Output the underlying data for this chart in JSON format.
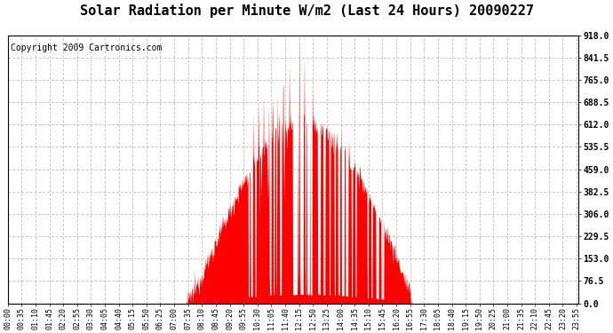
{
  "title": "Solar Radiation per Minute W/m2 (Last 24 Hours) 20090227",
  "copyright": "Copyright 2009 Cartronics.com",
  "y_min": 0.0,
  "y_max": 918.0,
  "y_ticks": [
    0.0,
    76.5,
    153.0,
    229.5,
    306.0,
    382.5,
    459.0,
    535.5,
    612.0,
    688.5,
    765.0,
    841.5,
    918.0
  ],
  "fill_color": "#FF0000",
  "line_color": "#FF0000",
  "dashed_line_color": "#FF0000",
  "background_color": "#FFFFFF",
  "grid_color": "#AAAAAA",
  "title_fontsize": 11,
  "copyright_fontsize": 7,
  "x_tick_fontsize": 6,
  "y_tick_fontsize": 7,
  "sunrise_min": 450,
  "sunset_min": 1020,
  "peak_min": 735,
  "peak_val": 918.0
}
